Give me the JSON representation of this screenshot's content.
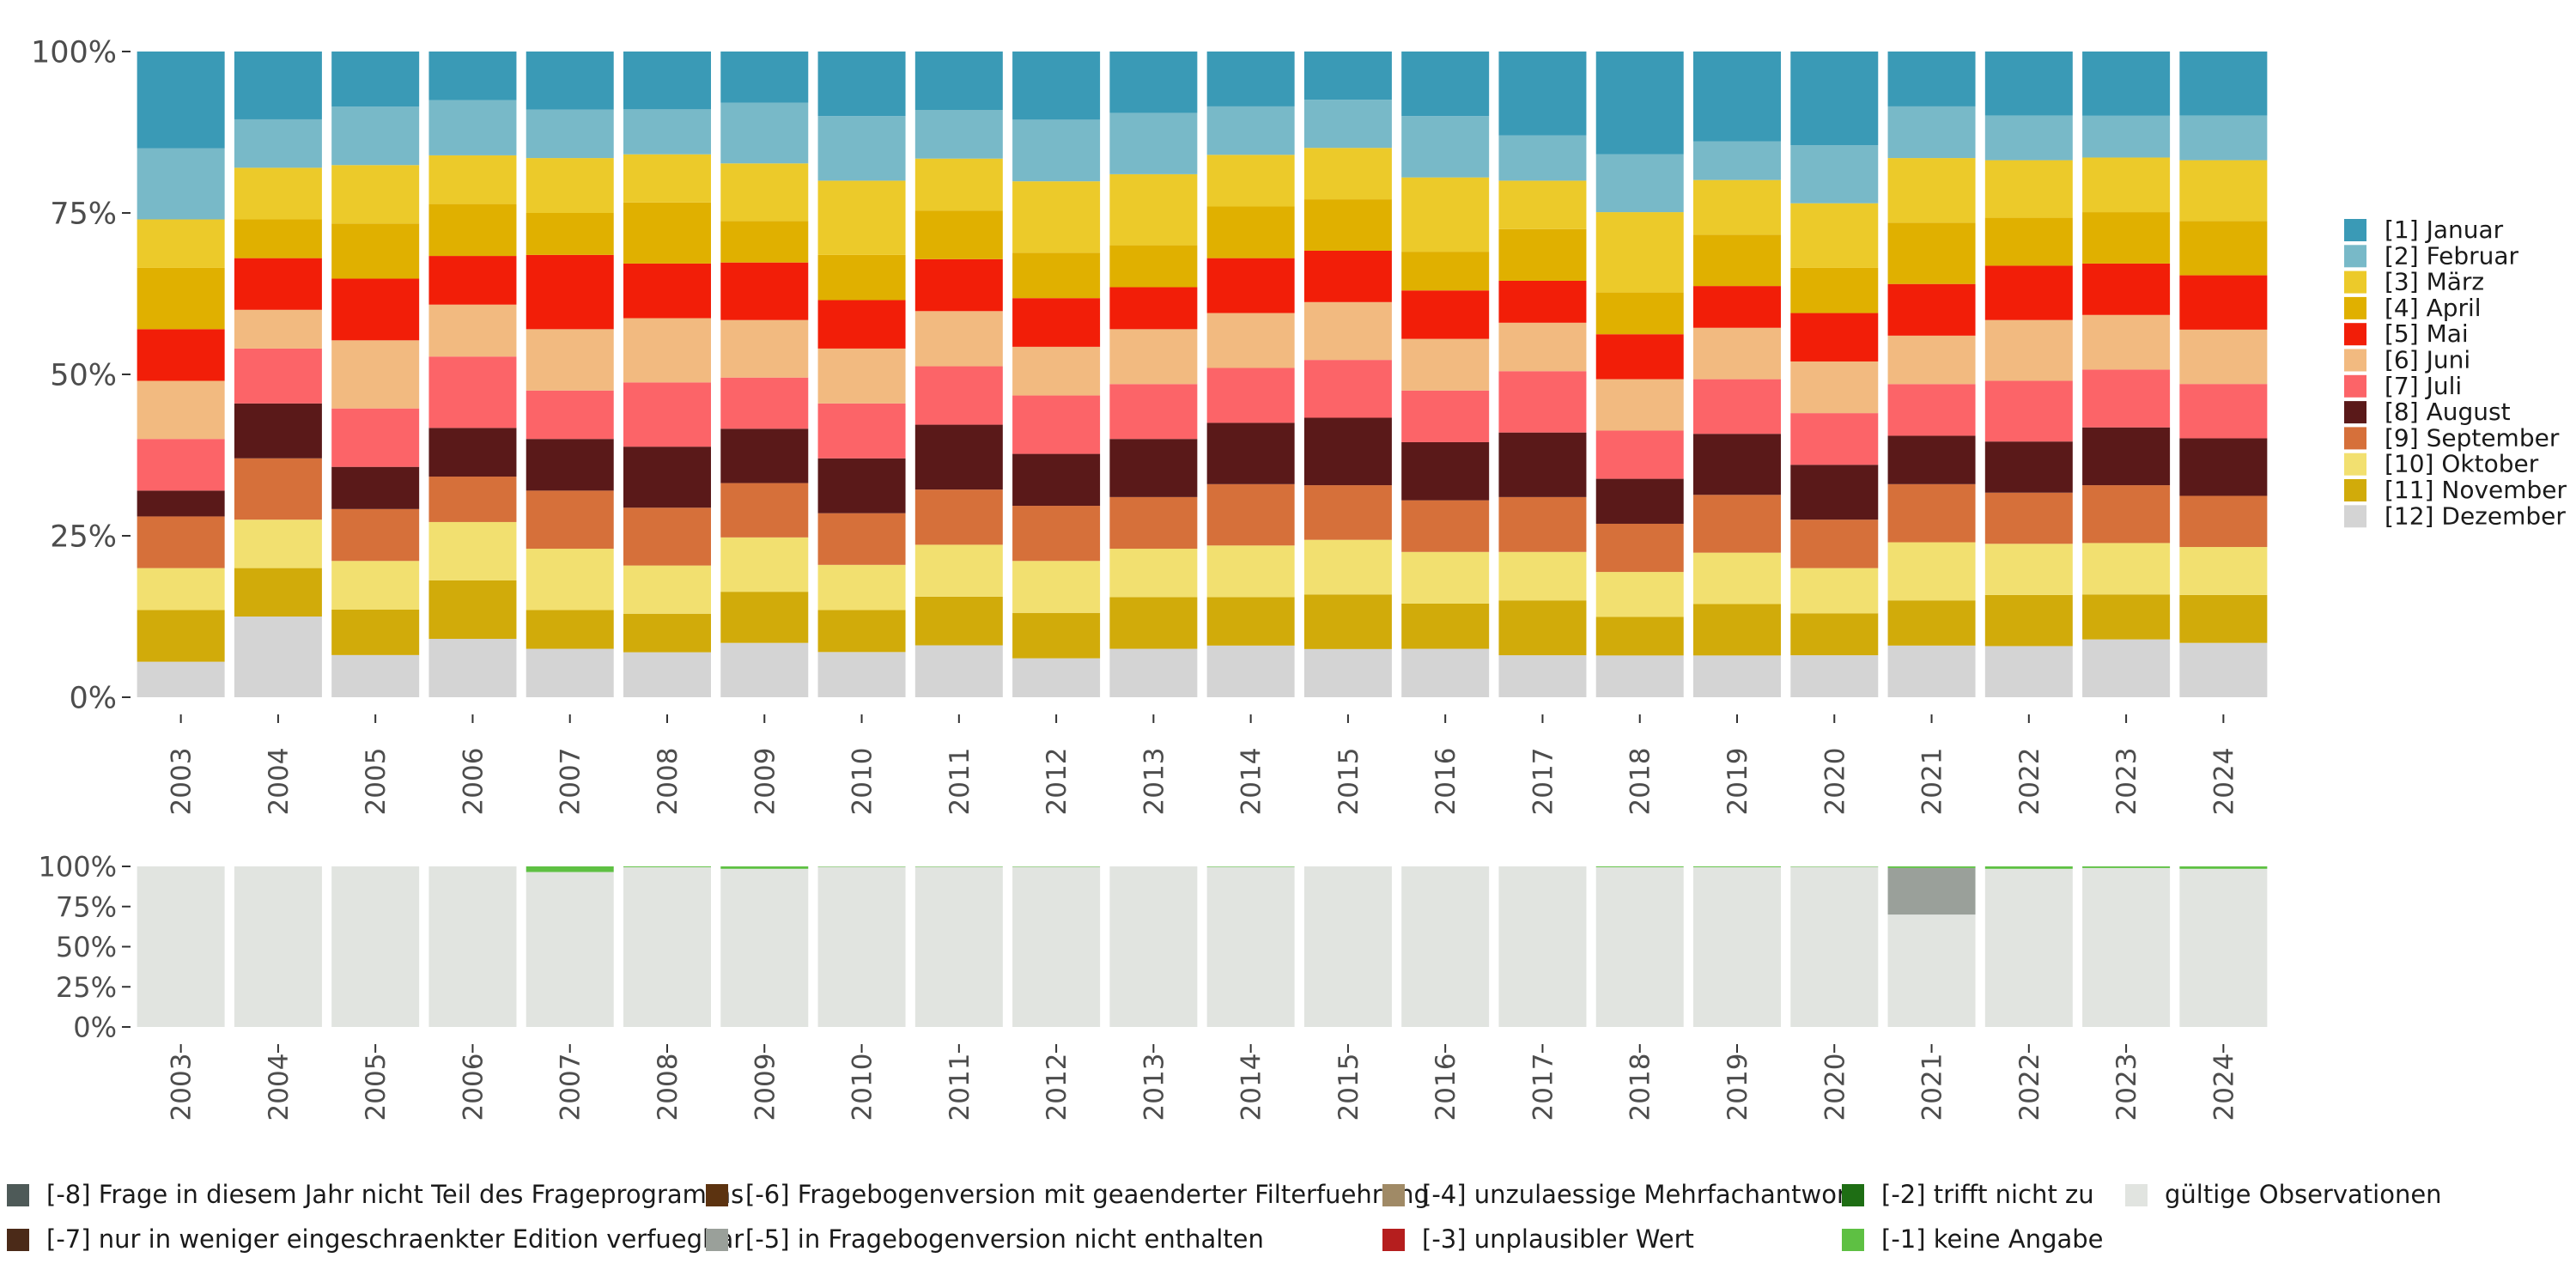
{
  "chart_data": [
    {
      "type": "bar",
      "stacked": "percent",
      "categories": [
        "2003",
        "2004",
        "2005",
        "2006",
        "2007",
        "2008",
        "2009",
        "2010",
        "2011",
        "2012",
        "2013",
        "2014",
        "2015",
        "2016",
        "2017",
        "2018",
        "2019",
        "2020",
        "2021",
        "2022",
        "2023",
        "2024"
      ],
      "y_ticks": [
        "0%",
        "25%",
        "50%",
        "75%",
        "100%"
      ],
      "ylim": [
        0,
        100
      ],
      "legend_position": "right",
      "series": [
        {
          "name": "[12] Dezember",
          "color": "#d4d4d4",
          "values": [
            5.5,
            12.5,
            6.5,
            9,
            7.5,
            7,
            8.5,
            7,
            8,
            6,
            7.5,
            8,
            7.5,
            7.5,
            6.5,
            6.5,
            6.5,
            6.5,
            8,
            8,
            9,
            8.5
          ]
        },
        {
          "name": "[11] November",
          "color": "#d1ab0a",
          "values": [
            8,
            7.5,
            7,
            9,
            6,
            6,
            8,
            6.5,
            7.5,
            7,
            8,
            7.5,
            8.5,
            7,
            8.5,
            6,
            8,
            6.5,
            7,
            8,
            7,
            7.5
          ]
        },
        {
          "name": "[10] Oktober",
          "color": "#f2e070",
          "values": [
            6.5,
            7.5,
            7.5,
            9,
            9.5,
            7.5,
            8.5,
            7,
            8,
            8,
            7.5,
            8,
            8.5,
            8,
            7.5,
            7,
            8,
            7,
            9,
            8,
            8,
            7.5
          ]
        },
        {
          "name": "[9] September",
          "color": "#d6703a",
          "values": [
            8,
            9.5,
            8,
            7,
            9,
            9,
            8.5,
            8,
            8.5,
            8.5,
            8,
            9.5,
            8.5,
            8,
            8.5,
            7.5,
            9,
            7.5,
            9,
            8,
            9,
            8
          ]
        },
        {
          "name": "[8] August",
          "color": "#5a1919",
          "values": [
            4,
            8.5,
            6.5,
            7.5,
            8,
            9.5,
            8.5,
            8.5,
            10,
            8,
            9,
            9.5,
            10.5,
            9,
            10,
            7,
            9.5,
            8.5,
            7.5,
            8,
            9,
            9
          ]
        },
        {
          "name": "[7] Juli",
          "color": "#fc6468",
          "values": [
            8,
            8.5,
            9,
            11,
            7.5,
            10,
            8,
            8.5,
            9,
            9,
            8.5,
            8.5,
            9,
            8,
            9.5,
            7.5,
            8.5,
            8,
            8,
            9.5,
            9,
            8.5
          ]
        },
        {
          "name": "[6] Juni",
          "color": "#f2ba80",
          "values": [
            9,
            6,
            10.5,
            8,
            9.5,
            10,
            9,
            8.5,
            8.5,
            7.5,
            8.5,
            8.5,
            9,
            8,
            7.5,
            8,
            8,
            8,
            7.5,
            9.5,
            8.5,
            8.5
          ]
        },
        {
          "name": "[5] Mai",
          "color": "#f21e08",
          "values": [
            8,
            8,
            9.5,
            7.5,
            11.5,
            8.5,
            9,
            7.5,
            8,
            7.5,
            6.5,
            8.5,
            8,
            7.5,
            6.5,
            7,
            6.5,
            7.5,
            8,
            8.5,
            8,
            8.5
          ]
        },
        {
          "name": "[4] April",
          "color": "#e0b000",
          "values": [
            9.5,
            6,
            8.5,
            8,
            6.5,
            9.5,
            6.5,
            7,
            7.5,
            7,
            6.5,
            8,
            8,
            6,
            8,
            6.5,
            8,
            7,
            9.5,
            7.5,
            8,
            8.5
          ]
        },
        {
          "name": "[3] März",
          "color": "#ecca2a",
          "values": [
            7.5,
            8,
            9,
            7.5,
            8.5,
            7.5,
            9,
            11.5,
            8,
            11,
            11,
            8,
            8,
            11.5,
            7.5,
            12.5,
            8.5,
            10,
            10,
            9,
            8.5,
            9.5
          ]
        },
        {
          "name": "[2] Februar",
          "color": "#78b9c8",
          "values": [
            11,
            7.5,
            9,
            8.5,
            7.5,
            7,
            9.5,
            10,
            7.5,
            9.5,
            9.5,
            7.5,
            7.5,
            9.5,
            7,
            9,
            6,
            9,
            8,
            7,
            6.5,
            7
          ]
        },
        {
          "name": "[1] Januar",
          "color": "#3a9ab6",
          "values": [
            15,
            10.5,
            8.5,
            7.5,
            9,
            9,
            8,
            10,
            9,
            10.5,
            9.5,
            8.5,
            7.5,
            10,
            13,
            16,
            14,
            14.5,
            8.5,
            10,
            10,
            10
          ]
        }
      ]
    },
    {
      "type": "bar",
      "stacked": "percent",
      "categories": [
        "2003",
        "2004",
        "2005",
        "2006",
        "2007",
        "2008",
        "2009",
        "2010",
        "2011",
        "2012",
        "2013",
        "2014",
        "2015",
        "2016",
        "2017",
        "2018",
        "2019",
        "2020",
        "2021",
        "2022",
        "2023",
        "2024"
      ],
      "y_ticks": [
        "0%",
        "25%",
        "50%",
        "75%",
        "100%"
      ],
      "ylim": [
        0,
        100
      ],
      "legend_position": "bottom",
      "series": [
        {
          "name": "gültige Observationen",
          "color": "#e1e4e0",
          "values": [
            100,
            100,
            100,
            100,
            96.5,
            99.5,
            98.5,
            99.8,
            99.8,
            99.8,
            100,
            99.7,
            100,
            100,
            100,
            99.5,
            99.5,
            99.8,
            70,
            98.5,
            99,
            98.5
          ]
        },
        {
          "name": "[-5] in Fragebogenversion nicht enthalten",
          "color": "#9aa09a",
          "values": [
            0,
            0,
            0,
            0,
            0,
            0,
            0,
            0,
            0,
            0,
            0,
            0,
            0,
            0,
            0,
            0,
            0,
            0,
            29,
            0,
            0,
            0
          ]
        },
        {
          "name": "[-1] keine Angabe",
          "color": "#5ec043",
          "values": [
            0,
            0,
            0,
            0,
            3.5,
            0.5,
            1.5,
            0.2,
            0.2,
            0.2,
            0,
            0.3,
            0,
            0,
            0,
            0.5,
            0.5,
            0.2,
            1,
            1.5,
            1,
            1.5
          ]
        }
      ]
    }
  ],
  "bottom_legend": [
    {
      "label": "[-8] Frage in diesem Jahr nicht Teil des Frageprogramms",
      "color": "#4e5a58"
    },
    {
      "label": "[-7] nur in weniger eingeschraenkter Edition verfuegbar",
      "color": "#4b2a18"
    },
    {
      "label": "[-6] Fragebogenversion mit geaenderter Filterfuehrung",
      "color": "#5c3310"
    },
    {
      "label": "[-5] in Fragebogenversion nicht enthalten",
      "color": "#9aa09a"
    },
    {
      "label": "[-4] unzulaessige Mehrfachantwort",
      "color": "#a08a66"
    },
    {
      "label": "[-3] unplausibler Wert",
      "color": "#b51e1e"
    },
    {
      "label": "[-2] trifft nicht zu",
      "color": "#1e6e14"
    },
    {
      "label": "[-1] keine Angabe",
      "color": "#5ec043"
    },
    {
      "label": "gültige Observationen",
      "color": "#e1e4e0"
    }
  ]
}
